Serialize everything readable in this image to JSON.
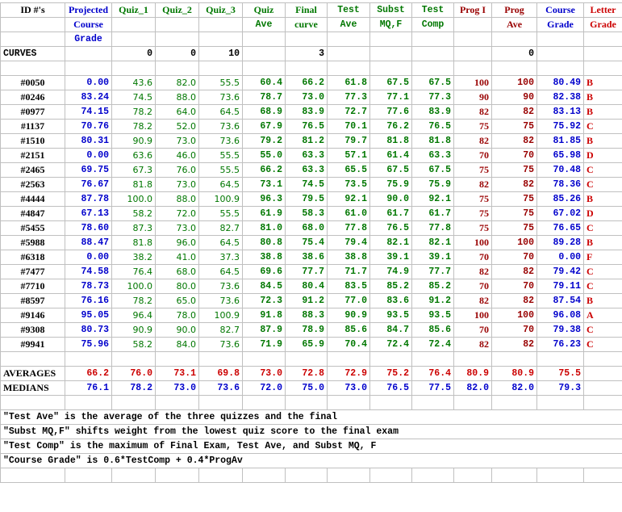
{
  "headers": {
    "id": "ID #'s",
    "projected": [
      "Projected",
      "Course",
      "Grade"
    ],
    "quiz1": "Quiz_1",
    "quiz2": "Quiz_2",
    "quiz3": "Quiz_3",
    "quizave": [
      "Quiz",
      "Ave"
    ],
    "final": [
      "Final",
      "curve"
    ],
    "testave": [
      "Test",
      "Ave"
    ],
    "subst": [
      "Subst",
      "MQ,F"
    ],
    "testcomp": [
      "Test",
      "Comp"
    ],
    "prog1": "Prog I",
    "progave": [
      "Prog",
      "Ave"
    ],
    "coursegrade": [
      "Course",
      "Grade"
    ],
    "letter": [
      "Letter",
      "Grade"
    ]
  },
  "curves": {
    "label": "CURVES",
    "quiz1": "0",
    "quiz2": "0",
    "quiz3": "10",
    "final": "3",
    "progave": "0"
  },
  "rows": [
    {
      "id": "#0050",
      "proj": "0.00",
      "q1": "43.6",
      "q2": "82.0",
      "q3": "55.5",
      "qave": "60.4",
      "fin": "66.2",
      "tave": "61.8",
      "sub": "67.5",
      "tcomp": "67.5",
      "p1": "100",
      "pave": "100",
      "cg": "80.49",
      "lg": "B"
    },
    {
      "id": "#0246",
      "proj": "83.24",
      "q1": "74.5",
      "q2": "88.0",
      "q3": "73.6",
      "qave": "78.7",
      "fin": "73.0",
      "tave": "77.3",
      "sub": "77.1",
      "tcomp": "77.3",
      "p1": "90",
      "pave": "90",
      "cg": "82.38",
      "lg": "B"
    },
    {
      "id": "#0977",
      "proj": "74.15",
      "q1": "78.2",
      "q2": "64.0",
      "q3": "64.5",
      "qave": "68.9",
      "fin": "83.9",
      "tave": "72.7",
      "sub": "77.6",
      "tcomp": "83.9",
      "p1": "82",
      "pave": "82",
      "cg": "83.13",
      "lg": "B"
    },
    {
      "id": "#1137",
      "proj": "70.76",
      "q1": "78.2",
      "q2": "52.0",
      "q3": "73.6",
      "qave": "67.9",
      "fin": "76.5",
      "tave": "70.1",
      "sub": "76.2",
      "tcomp": "76.5",
      "p1": "75",
      "pave": "75",
      "cg": "75.92",
      "lg": "C"
    },
    {
      "id": "#1510",
      "proj": "80.31",
      "q1": "90.9",
      "q2": "73.0",
      "q3": "73.6",
      "qave": "79.2",
      "fin": "81.2",
      "tave": "79.7",
      "sub": "81.8",
      "tcomp": "81.8",
      "p1": "82",
      "pave": "82",
      "cg": "81.85",
      "lg": "B"
    },
    {
      "id": "#2151",
      "proj": "0.00",
      "q1": "63.6",
      "q2": "46.0",
      "q3": "55.5",
      "qave": "55.0",
      "fin": "63.3",
      "tave": "57.1",
      "sub": "61.4",
      "tcomp": "63.3",
      "p1": "70",
      "pave": "70",
      "cg": "65.98",
      "lg": "D"
    },
    {
      "id": "#2465",
      "proj": "69.75",
      "q1": "67.3",
      "q2": "76.0",
      "q3": "55.5",
      "qave": "66.2",
      "fin": "63.3",
      "tave": "65.5",
      "sub": "67.5",
      "tcomp": "67.5",
      "p1": "75",
      "pave": "75",
      "cg": "70.48",
      "lg": "C"
    },
    {
      "id": "#2563",
      "proj": "76.67",
      "q1": "81.8",
      "q2": "73.0",
      "q3": "64.5",
      "qave": "73.1",
      "fin": "74.5",
      "tave": "73.5",
      "sub": "75.9",
      "tcomp": "75.9",
      "p1": "82",
      "pave": "82",
      "cg": "78.36",
      "lg": "C"
    },
    {
      "id": "#4444",
      "proj": "87.78",
      "q1": "100.0",
      "q2": "88.0",
      "q3": "100.9",
      "qave": "96.3",
      "fin": "79.5",
      "tave": "92.1",
      "sub": "90.0",
      "tcomp": "92.1",
      "p1": "75",
      "pave": "75",
      "cg": "85.26",
      "lg": "B"
    },
    {
      "id": "#4847",
      "proj": "67.13",
      "q1": "58.2",
      "q2": "72.0",
      "q3": "55.5",
      "qave": "61.9",
      "fin": "58.3",
      "tave": "61.0",
      "sub": "61.7",
      "tcomp": "61.7",
      "p1": "75",
      "pave": "75",
      "cg": "67.02",
      "lg": "D"
    },
    {
      "id": "#5455",
      "proj": "78.60",
      "q1": "87.3",
      "q2": "73.0",
      "q3": "82.7",
      "qave": "81.0",
      "fin": "68.0",
      "tave": "77.8",
      "sub": "76.5",
      "tcomp": "77.8",
      "p1": "75",
      "pave": "75",
      "cg": "76.65",
      "lg": "C"
    },
    {
      "id": "#5988",
      "proj": "88.47",
      "q1": "81.8",
      "q2": "96.0",
      "q3": "64.5",
      "qave": "80.8",
      "fin": "75.4",
      "tave": "79.4",
      "sub": "82.1",
      "tcomp": "82.1",
      "p1": "100",
      "pave": "100",
      "cg": "89.28",
      "lg": "B"
    },
    {
      "id": "#6318",
      "proj": "0.00",
      "q1": "38.2",
      "q2": "41.0",
      "q3": "37.3",
      "qave": "38.8",
      "fin": "38.6",
      "tave": "38.8",
      "sub": "39.1",
      "tcomp": "39.1",
      "p1": "70",
      "pave": "70",
      "cg": "0.00",
      "lg": "F"
    },
    {
      "id": "#7477",
      "proj": "74.58",
      "q1": "76.4",
      "q2": "68.0",
      "q3": "64.5",
      "qave": "69.6",
      "fin": "77.7",
      "tave": "71.7",
      "sub": "74.9",
      "tcomp": "77.7",
      "p1": "82",
      "pave": "82",
      "cg": "79.42",
      "lg": "C"
    },
    {
      "id": "#7710",
      "proj": "78.73",
      "q1": "100.0",
      "q2": "80.0",
      "q3": "73.6",
      "qave": "84.5",
      "fin": "80.4",
      "tave": "83.5",
      "sub": "85.2",
      "tcomp": "85.2",
      "p1": "70",
      "pave": "70",
      "cg": "79.11",
      "lg": "C"
    },
    {
      "id": "#8597",
      "proj": "76.16",
      "q1": "78.2",
      "q2": "65.0",
      "q3": "73.6",
      "qave": "72.3",
      "fin": "91.2",
      "tave": "77.0",
      "sub": "83.6",
      "tcomp": "91.2",
      "p1": "82",
      "pave": "82",
      "cg": "87.54",
      "lg": "B"
    },
    {
      "id": "#9146",
      "proj": "95.05",
      "q1": "96.4",
      "q2": "78.0",
      "q3": "100.9",
      "qave": "91.8",
      "fin": "88.3",
      "tave": "90.9",
      "sub": "93.5",
      "tcomp": "93.5",
      "p1": "100",
      "pave": "100",
      "cg": "96.08",
      "lg": "A"
    },
    {
      "id": "#9308",
      "proj": "80.73",
      "q1": "90.9",
      "q2": "90.0",
      "q3": "82.7",
      "qave": "87.9",
      "fin": "78.9",
      "tave": "85.6",
      "sub": "84.7",
      "tcomp": "85.6",
      "p1": "70",
      "pave": "70",
      "cg": "79.38",
      "lg": "C"
    },
    {
      "id": "#9941",
      "proj": "75.96",
      "q1": "58.2",
      "q2": "84.0",
      "q3": "73.6",
      "qave": "71.9",
      "fin": "65.9",
      "tave": "70.4",
      "sub": "72.4",
      "tcomp": "72.4",
      "p1": "82",
      "pave": "82",
      "cg": "76.23",
      "lg": "C"
    }
  ],
  "averages": {
    "label": "AVERAGES",
    "proj": "66.2",
    "q1": "76.0",
    "q2": "73.1",
    "q3": "69.8",
    "qave": "73.0",
    "fin": "72.8",
    "tave": "72.9",
    "sub": "75.2",
    "tcomp": "76.4",
    "p1": "80.9",
    "pave": "80.9",
    "cg": "75.5"
  },
  "medians": {
    "label": "MEDIANS",
    "proj": "76.1",
    "q1": "78.2",
    "q2": "73.0",
    "q3": "73.6",
    "qave": "72.0",
    "fin": "75.0",
    "tave": "73.0",
    "sub": "76.5",
    "tcomp": "77.5",
    "p1": "82.0",
    "pave": "82.0",
    "cg": "79.3"
  },
  "notes": [
    "\"Test Ave\" is the average of the three quizzes and the final",
    "\"Subst MQ,F\" shifts weight from the lowest quiz score to the final exam",
    "\"Test Comp\" is the maximum of Final Exam, Test Ave, and Subst MQ, F",
    "\"Course Grade\" is 0.6*TestComp + 0.4*ProgAv"
  ],
  "colors": {
    "blue": "#0000cc",
    "green": "#007700",
    "darkred": "#990000",
    "red": "#cc0000"
  }
}
